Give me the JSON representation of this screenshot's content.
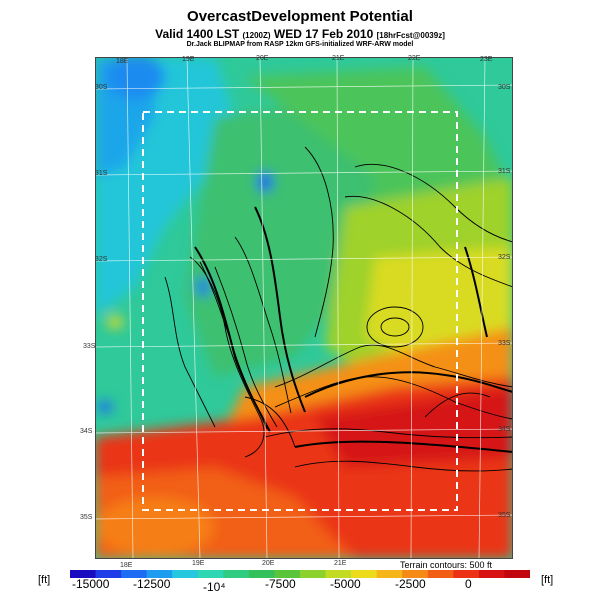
{
  "header": {
    "title": "OvercastDevelopment Potential",
    "valid_prefix": "Valid 1400 LST ",
    "valid_small": "(1200Z)",
    "valid_main": " WED 17 Feb 2010 ",
    "forecast_small": "[18hrFcst@0039z]",
    "credit": "Dr.Jack BLIPMAP from RASP 12km GFS-initialized WRF-ARW model"
  },
  "map": {
    "lon_labels_top": [
      "18E",
      "19E",
      "20E",
      "21E",
      "22E",
      "23E"
    ],
    "lon_labels_bottom": [
      "18E",
      "19E",
      "20E",
      "21E"
    ],
    "lat_labels_left": [
      "30S",
      "31S",
      "32S",
      "33S",
      "34S",
      "35S"
    ],
    "lat_labels_right": [
      "30S",
      "31S",
      "32S",
      "33S",
      "34S",
      "35S"
    ],
    "terrain_note": "Terrain contours: 500 ft"
  },
  "colorbar": {
    "unit_left": "[ft]",
    "unit_right": "[ft]",
    "tick_labels": [
      "-15000",
      "-12500",
      "-10⁴",
      "-7500",
      "-5000",
      "-2500",
      "0"
    ],
    "colors": [
      "#1a0dbf",
      "#1e3ce8",
      "#1f6cf4",
      "#1e9cf0",
      "#25c8de",
      "#2ed7b4",
      "#2fcc82",
      "#34c05a",
      "#5ac43a",
      "#8cd12d",
      "#c2dc24",
      "#ecdc1c",
      "#f6b518",
      "#f68a16",
      "#f25e14",
      "#ec3214",
      "#d81212",
      "#c2060e"
    ]
  }
}
